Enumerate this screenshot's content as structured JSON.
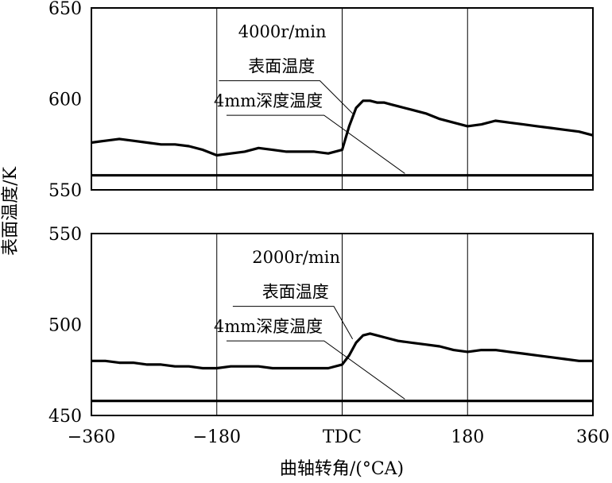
{
  "chart_data": {
    "type": "line",
    "xlabel": "曲轴转角/(°CA)",
    "ylabel": "表面温度/K",
    "xticks": [
      {
        "value": -360,
        "label": "−360"
      },
      {
        "value": -180,
        "label": "−180"
      },
      {
        "value": 0,
        "label": "TDC"
      },
      {
        "value": 180,
        "label": "180"
      },
      {
        "value": 360,
        "label": "360"
      }
    ],
    "xlim": [
      -360,
      360
    ],
    "grid": true,
    "panels": [
      {
        "id": "top",
        "ylim": [
          550,
          650
        ],
        "yticks": [
          550,
          600,
          650
        ],
        "annotations": [
          {
            "text": "4000r/min",
            "x": -86,
            "y": 637
          },
          {
            "text": "表面温度",
            "x": -87,
            "y": 618
          },
          {
            "text": "4mm深度温度",
            "x": -106,
            "y": 599
          }
        ],
        "series": [
          {
            "label": "表面温度",
            "x": [
              -360,
              -340,
              -320,
              -300,
              -280,
              -260,
              -240,
              -220,
              -200,
              -180,
              -160,
              -140,
              -120,
              -100,
              -80,
              -60,
              -40,
              -20,
              0,
              10,
              20,
              30,
              40,
              50,
              60,
              70,
              80,
              100,
              120,
              140,
              160,
              180,
              200,
              220,
              240,
              260,
              280,
              300,
              320,
              340,
              360
            ],
            "y": [
              576,
              577,
              578,
              577,
              576,
              575,
              575,
              574,
              572,
              569,
              570,
              571,
              573,
              572,
              571,
              571,
              571,
              570,
              572,
              585,
              595,
              599,
              599,
              598,
              598,
              597,
              596,
              594,
              592,
              589,
              587,
              585,
              586,
              588,
              587,
              586,
              585,
              584,
              583,
              582,
              580
            ]
          },
          {
            "label": "4mm深度温度",
            "x": [
              -360,
              360
            ],
            "y": [
              558,
              558
            ]
          }
        ]
      },
      {
        "id": "bottom",
        "ylim": [
          450,
          550
        ],
        "yticks": [
          450,
          500,
          550
        ],
        "annotations": [
          {
            "text": "2000r/min",
            "x": -66,
            "y": 537
          },
          {
            "text": "表面温度",
            "x": -67,
            "y": 518
          },
          {
            "text": "4mm深度温度",
            "x": -106,
            "y": 499
          }
        ],
        "series": [
          {
            "label": "表面温度",
            "x": [
              -360,
              -340,
              -320,
              -300,
              -280,
              -260,
              -240,
              -220,
              -200,
              -180,
              -160,
              -140,
              -120,
              -100,
              -80,
              -60,
              -40,
              -20,
              0,
              10,
              20,
              30,
              40,
              50,
              60,
              80,
              100,
              120,
              140,
              160,
              180,
              200,
              220,
              240,
              260,
              280,
              300,
              320,
              340,
              360
            ],
            "y": [
              480,
              480,
              479,
              479,
              478,
              478,
              477,
              477,
              476,
              476,
              477,
              477,
              477,
              476,
              476,
              476,
              476,
              476,
              478,
              483,
              490,
              494,
              495,
              494,
              493,
              491,
              490,
              489,
              488,
              486,
              485,
              486,
              486,
              485,
              484,
              483,
              482,
              481,
              480,
              480
            ]
          },
          {
            "label": "4mm深度温度",
            "x": [
              -360,
              360
            ],
            "y": [
              458,
              458
            ]
          }
        ]
      }
    ]
  }
}
